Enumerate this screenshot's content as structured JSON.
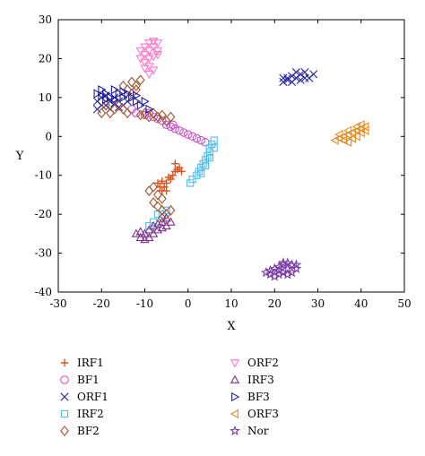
{
  "chart_data": {
    "type": "scatter",
    "xlabel": "X",
    "ylabel": "Y",
    "xlim": [
      -30,
      50
    ],
    "ylim": [
      -40,
      30
    ],
    "xticks": [
      -30,
      -20,
      -10,
      0,
      10,
      20,
      30,
      40,
      50
    ],
    "yticks": [
      30,
      20,
      10,
      0,
      -10,
      -20,
      -30,
      -40
    ],
    "grid": false,
    "legend_placement": "bottom",
    "series": [
      {
        "name": "IRF1",
        "marker": "plus",
        "color": "#d95319",
        "points": [
          [
            -3,
            -7
          ],
          [
            -2,
            -8
          ],
          [
            -1.5,
            -9
          ],
          [
            -2.5,
            -8.5
          ],
          [
            -3.5,
            -10
          ],
          [
            -4,
            -11
          ],
          [
            -5,
            -12
          ],
          [
            -5.5,
            -13
          ],
          [
            -6,
            -14
          ],
          [
            -6.5,
            -13
          ],
          [
            -7,
            -12
          ],
          [
            -5,
            -14
          ],
          [
            -4.5,
            -10.5
          ],
          [
            -6,
            -11.5
          ],
          [
            -3,
            -9
          ]
        ]
      },
      {
        "name": "BF1",
        "marker": "circle",
        "color": "#c850c8",
        "points": [
          [
            -13,
            7
          ],
          [
            -12,
            6
          ],
          [
            -10,
            5.5
          ],
          [
            -8,
            5
          ],
          [
            -6,
            4
          ],
          [
            -5,
            3
          ],
          [
            -4,
            2.5
          ],
          [
            -3,
            2
          ],
          [
            -2,
            1.5
          ],
          [
            -1,
            1
          ],
          [
            0,
            0.5
          ],
          [
            1,
            0
          ],
          [
            2,
            -0.5
          ],
          [
            3,
            -1
          ],
          [
            4,
            -1.5
          ],
          [
            -9,
            6
          ],
          [
            -7,
            4.5
          ],
          [
            -3.5,
            3
          ]
        ]
      },
      {
        "name": "ORF1",
        "marker": "x",
        "color": "#2a2aa0",
        "points": [
          [
            -21,
            9
          ],
          [
            -20,
            10
          ],
          [
            -19,
            8
          ],
          [
            -18,
            9
          ],
          [
            -17,
            10
          ],
          [
            -16,
            9
          ],
          [
            -15,
            8
          ],
          [
            -20,
            8
          ],
          [
            -18,
            7
          ],
          [
            -14,
            9
          ],
          [
            -19,
            10.5
          ],
          [
            -16,
            7.5
          ],
          [
            -17,
            8.5
          ],
          [
            -21,
            7
          ],
          [
            22,
            14
          ],
          [
            23,
            15
          ],
          [
            24,
            15.5
          ],
          [
            25,
            15
          ],
          [
            26,
            16
          ],
          [
            27,
            16.5
          ],
          [
            28,
            15
          ],
          [
            29,
            16
          ],
          [
            24,
            14
          ],
          [
            26,
            14.5
          ],
          [
            22,
            15
          ],
          [
            25,
            16.5
          ],
          [
            27,
            15
          ],
          [
            23,
            14.5
          ]
        ]
      },
      {
        "name": "IRF2",
        "marker": "square",
        "color": "#4dbeee",
        "points": [
          [
            6,
            -1
          ],
          [
            5.5,
            -2
          ],
          [
            5,
            -3
          ],
          [
            5,
            -4
          ],
          [
            4.5,
            -5
          ],
          [
            4,
            -6
          ],
          [
            3.5,
            -7
          ],
          [
            3,
            -8
          ],
          [
            2.5,
            -9
          ],
          [
            2,
            -10
          ],
          [
            1,
            -11
          ],
          [
            0.5,
            -12
          ],
          [
            -5,
            -19
          ],
          [
            -6,
            -20
          ],
          [
            -7,
            -20
          ],
          [
            -8,
            -22
          ],
          [
            -9,
            -23
          ],
          [
            6,
            -3
          ],
          [
            5,
            -5.5
          ],
          [
            4,
            -7.5
          ],
          [
            3,
            -9.5
          ]
        ]
      },
      {
        "name": "BF2",
        "marker": "diamond",
        "color": "#a0522d",
        "points": [
          [
            -13,
            14
          ],
          [
            -12,
            13
          ],
          [
            -14,
            12
          ],
          [
            -13,
            11
          ],
          [
            -15,
            13
          ],
          [
            -11,
            14.5
          ],
          [
            -12,
            12
          ],
          [
            -16,
            8
          ],
          [
            -15,
            7
          ],
          [
            -14,
            6
          ],
          [
            -18,
            6
          ],
          [
            -17,
            7
          ],
          [
            -19,
            8
          ],
          [
            -20,
            6
          ],
          [
            -10,
            6
          ],
          [
            -9,
            5
          ],
          [
            -7,
            5
          ],
          [
            -6,
            5.5
          ],
          [
            -5,
            4
          ],
          [
            -4,
            5
          ],
          [
            -8,
            6
          ],
          [
            -11,
            5.5
          ],
          [
            -8,
            -13
          ],
          [
            -9,
            -14
          ],
          [
            -7,
            -15
          ],
          [
            -6,
            -16
          ],
          [
            -8,
            -17
          ],
          [
            -7,
            -18
          ],
          [
            -6,
            -19
          ],
          [
            -4,
            -19
          ],
          [
            -5,
            -20
          ],
          [
            -6,
            -21
          ]
        ]
      },
      {
        "name": "ORF2",
        "marker": "triangle-down",
        "color": "#ff77cc",
        "points": [
          [
            -9,
            24
          ],
          [
            -8,
            24.5
          ],
          [
            -7,
            24
          ],
          [
            -10,
            23
          ],
          [
            -9,
            22
          ],
          [
            -8,
            23
          ],
          [
            -7,
            22
          ],
          [
            -11,
            22
          ],
          [
            -10,
            21
          ],
          [
            -9,
            20
          ],
          [
            -8,
            20.5
          ],
          [
            -10,
            19
          ],
          [
            -9,
            18
          ],
          [
            -8,
            17
          ],
          [
            -11,
            20
          ],
          [
            -7,
            21
          ],
          [
            -9,
            16
          ],
          [
            -10,
            17.5
          ]
        ]
      },
      {
        "name": "IRF3",
        "marker": "triangle-up",
        "color": "#7e2f8e",
        "points": [
          [
            -12,
            -25
          ],
          [
            -11,
            -26
          ],
          [
            -10,
            -25
          ],
          [
            -9,
            -24
          ],
          [
            -8,
            -23
          ],
          [
            -7,
            -24
          ],
          [
            -6,
            -22
          ],
          [
            -5,
            -21
          ],
          [
            -4,
            -22
          ],
          [
            -9,
            -26
          ],
          [
            -10,
            -26.5
          ],
          [
            -8,
            -25
          ],
          [
            -7,
            -22.5
          ],
          [
            -6,
            -23.5
          ],
          [
            -11,
            -24.5
          ],
          [
            -5,
            -23
          ]
        ]
      },
      {
        "name": "BF3",
        "marker": "triangle-right",
        "color": "#2020a0",
        "points": [
          [
            -21,
            11
          ],
          [
            -20,
            12
          ],
          [
            -19,
            11
          ],
          [
            -18,
            10
          ],
          [
            -17,
            12
          ],
          [
            -16,
            11
          ],
          [
            -15,
            10
          ],
          [
            -14,
            11
          ],
          [
            -13,
            10
          ],
          [
            -12,
            9
          ],
          [
            -11,
            8
          ],
          [
            -10,
            9
          ],
          [
            -19,
            9.5
          ],
          [
            -20,
            10.5
          ],
          [
            -17,
            9.5
          ],
          [
            -15,
            11.5
          ],
          [
            -12,
            10.5
          ],
          [
            -9,
            7
          ]
        ]
      },
      {
        "name": "ORF3",
        "marker": "triangle-left",
        "color": "#e58a1f",
        "points": [
          [
            34,
            -1
          ],
          [
            35,
            -0.5
          ],
          [
            36,
            0
          ],
          [
            37,
            0.5
          ],
          [
            38,
            1
          ],
          [
            39,
            1.5
          ],
          [
            40,
            2
          ],
          [
            41,
            2.5
          ],
          [
            36,
            -1
          ],
          [
            37,
            -1.5
          ],
          [
            38,
            -0.5
          ],
          [
            39,
            0
          ],
          [
            40,
            1
          ],
          [
            41,
            1.5
          ],
          [
            35,
            0.5
          ],
          [
            37,
            1.5
          ],
          [
            39,
            2.5
          ],
          [
            40,
            3
          ]
        ]
      },
      {
        "name": "Nor",
        "marker": "star",
        "color": "#7b3fa8",
        "points": [
          [
            18,
            -35
          ],
          [
            19,
            -35.5
          ],
          [
            20,
            -34
          ],
          [
            21,
            -34.5
          ],
          [
            22,
            -33
          ],
          [
            23,
            -34
          ],
          [
            24,
            -33
          ],
          [
            25,
            -34
          ],
          [
            20,
            -36
          ],
          [
            21,
            -35.5
          ],
          [
            22,
            -35
          ],
          [
            23,
            -35.5
          ],
          [
            24,
            -35
          ],
          [
            22,
            -32.5
          ],
          [
            19,
            -34.5
          ],
          [
            21,
            -33.5
          ],
          [
            23,
            -32.5
          ],
          [
            25,
            -33
          ]
        ]
      }
    ]
  }
}
